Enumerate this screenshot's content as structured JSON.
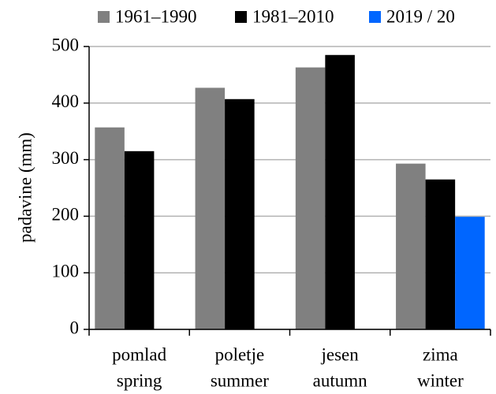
{
  "chart_data": {
    "type": "bar",
    "y_label": "padavine (mm)",
    "categories": [
      [
        "pomlad",
        "spring"
      ],
      [
        "poletje",
        "summer"
      ],
      [
        "jesen",
        "autumn"
      ],
      [
        "zima",
        "winter"
      ]
    ],
    "series": [
      {
        "name": "1961–1990",
        "color": "#808080",
        "values": [
          357,
          427,
          463,
          293
        ]
      },
      {
        "name": "1981–2010",
        "color": "#000000",
        "values": [
          315,
          407,
          485,
          265
        ]
      },
      {
        "name": "2019 / 20",
        "color": "#0066ff",
        "values": [
          null,
          null,
          null,
          199
        ]
      }
    ],
    "ylim": [
      0,
      500
    ],
    "yticks": [
      0,
      100,
      200,
      300,
      400,
      500
    ],
    "grid": true,
    "legend": "top"
  }
}
